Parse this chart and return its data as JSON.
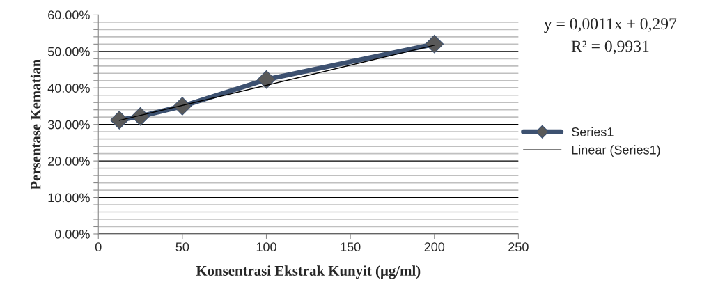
{
  "chart_data": {
    "type": "line",
    "xlabel": "Konsentrasi Ekstrak Kunyit (µg/ml)",
    "ylabel": "Persentase Kematian",
    "x": [
      12.5,
      25,
      50,
      100,
      200
    ],
    "series": [
      {
        "name": "Series1",
        "color": "#3d5170",
        "values": [
          31.2,
          32.2,
          35.0,
          42.3,
          52.0
        ],
        "marker": "diamond",
        "line_style": "solid"
      },
      {
        "name": "Linear (Series1)",
        "color": "#000000",
        "x": [
          12.5,
          200
        ],
        "values": [
          31.1,
          51.7
        ],
        "marker": "none",
        "line_style": "solid"
      }
    ],
    "xlim": [
      0,
      250
    ],
    "xticks": [
      0,
      50,
      100,
      150,
      200,
      250
    ],
    "ylim": [
      0,
      60
    ],
    "yticks": [
      {
        "value": 0,
        "label": "0.00%"
      },
      {
        "value": 2,
        "label": null
      },
      {
        "value": 4,
        "label": null
      },
      {
        "value": 6,
        "label": null
      },
      {
        "value": 8,
        "label": null
      },
      {
        "value": 10,
        "label": "10.00%"
      },
      {
        "value": 12,
        "label": null
      },
      {
        "value": 14,
        "label": null
      },
      {
        "value": 16,
        "label": null
      },
      {
        "value": 18,
        "label": null
      },
      {
        "value": 20,
        "label": "20.00%"
      },
      {
        "value": 22,
        "label": null
      },
      {
        "value": 24,
        "label": null
      },
      {
        "value": 26,
        "label": null
      },
      {
        "value": 28,
        "label": null
      },
      {
        "value": 30,
        "label": "30.00%"
      },
      {
        "value": 32,
        "label": null
      },
      {
        "value": 34,
        "label": null
      },
      {
        "value": 36,
        "label": null
      },
      {
        "value": 38,
        "label": null
      },
      {
        "value": 40,
        "label": "40.00%"
      },
      {
        "value": 42,
        "label": null
      },
      {
        "value": 44,
        "label": null
      },
      {
        "value": 46,
        "label": null
      },
      {
        "value": 48,
        "label": null
      },
      {
        "value": 50,
        "label": "50.00%"
      },
      {
        "value": 52,
        "label": null
      },
      {
        "value": 54,
        "label": null
      },
      {
        "value": 56,
        "label": null
      },
      {
        "value": 58,
        "label": null
      },
      {
        "value": 60,
        "label": "60.00%"
      }
    ],
    "grid": "y",
    "legend": "right",
    "annotations": [
      "y = 0,0011x + 0,297",
      "R² = 0,9931"
    ]
  }
}
